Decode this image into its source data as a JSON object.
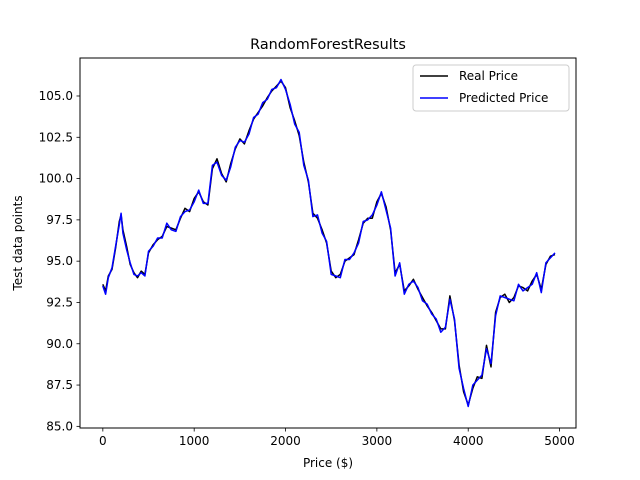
{
  "chart_data": {
    "type": "line",
    "title": "RandomForestResults",
    "xlabel": "Price ($)",
    "ylabel": "Test data points",
    "xlim": [
      -250,
      5180
    ],
    "ylim": [
      84.9,
      107.3
    ],
    "xticks": [
      0,
      1000,
      2000,
      3000,
      4000,
      5000
    ],
    "xtick_labels": [
      "0",
      "1000",
      "2000",
      "3000",
      "4000",
      "5000"
    ],
    "yticks": [
      85.0,
      87.5,
      90.0,
      92.5,
      95.0,
      97.5,
      100.0,
      102.5,
      105.0
    ],
    "ytick_labels": [
      "85.0",
      "87.5",
      "90.0",
      "92.5",
      "95.0",
      "97.5",
      "100.0",
      "102.5",
      "105.0"
    ],
    "grid": false,
    "legend_position": "top-right",
    "series": [
      {
        "name": "Real Price",
        "color": "#000000",
        "x": [
          0,
          30,
          60,
          100,
          140,
          180,
          200,
          220,
          260,
          300,
          340,
          380,
          420,
          460,
          500,
          550,
          600,
          650,
          700,
          750,
          800,
          850,
          900,
          950,
          1000,
          1050,
          1100,
          1150,
          1200,
          1250,
          1300,
          1350,
          1400,
          1450,
          1500,
          1550,
          1600,
          1650,
          1700,
          1750,
          1800,
          1850,
          1900,
          1950,
          2000,
          2050,
          2100,
          2150,
          2200,
          2250,
          2300,
          2350,
          2400,
          2450,
          2500,
          2550,
          2600,
          2650,
          2700,
          2750,
          2800,
          2850,
          2900,
          2950,
          3000,
          3050,
          3100,
          3150,
          3200,
          3250,
          3300,
          3350,
          3400,
          3450,
          3500,
          3550,
          3600,
          3650,
          3700,
          3750,
          3800,
          3850,
          3900,
          3950,
          4000,
          4050,
          4100,
          4150,
          4200,
          4250,
          4300,
          4350,
          4400,
          4450,
          4500,
          4550,
          4600,
          4650,
          4700,
          4750,
          4800,
          4850,
          4900,
          4950
        ],
        "y": [
          93.6,
          93.2,
          94.1,
          94.5,
          95.8,
          97.4,
          97.8,
          96.9,
          95.9,
          94.8,
          94.3,
          94.0,
          94.4,
          94.2,
          95.5,
          96.0,
          96.3,
          96.5,
          97.1,
          97.0,
          96.9,
          97.6,
          98.2,
          98.0,
          98.8,
          99.2,
          98.6,
          98.4,
          100.6,
          101.2,
          100.3,
          99.8,
          100.9,
          101.8,
          102.4,
          102.1,
          102.9,
          103.6,
          104.0,
          104.4,
          104.9,
          105.3,
          105.6,
          105.9,
          105.5,
          104.3,
          103.5,
          102.6,
          101.0,
          99.8,
          97.9,
          97.6,
          96.9,
          96.1,
          94.4,
          94.0,
          94.2,
          95.0,
          95.2,
          95.4,
          96.3,
          97.3,
          97.6,
          97.6,
          98.6,
          99.1,
          98.3,
          96.9,
          94.3,
          94.8,
          93.2,
          93.5,
          93.9,
          93.3,
          92.8,
          92.3,
          91.9,
          91.4,
          90.9,
          90.9,
          92.9,
          91.4,
          88.7,
          87.1,
          86.3,
          87.3,
          88.0,
          87.9,
          89.9,
          88.6,
          91.9,
          92.8,
          93.0,
          92.5,
          92.8,
          93.5,
          93.4,
          93.2,
          93.8,
          94.2,
          93.3,
          94.8,
          95.3,
          95.4
        ]
      },
      {
        "name": "Predicted Price",
        "color": "#0000ff",
        "x": [
          0,
          30,
          60,
          100,
          140,
          180,
          200,
          220,
          260,
          300,
          340,
          380,
          420,
          460,
          500,
          550,
          600,
          650,
          700,
          750,
          800,
          850,
          900,
          950,
          1000,
          1050,
          1100,
          1150,
          1200,
          1250,
          1300,
          1350,
          1400,
          1450,
          1500,
          1550,
          1600,
          1650,
          1700,
          1750,
          1800,
          1850,
          1900,
          1950,
          2000,
          2050,
          2100,
          2150,
          2200,
          2250,
          2300,
          2350,
          2400,
          2450,
          2500,
          2550,
          2600,
          2650,
          2700,
          2750,
          2800,
          2850,
          2900,
          2950,
          3000,
          3050,
          3100,
          3150,
          3200,
          3250,
          3300,
          3350,
          3400,
          3450,
          3500,
          3550,
          3600,
          3650,
          3700,
          3750,
          3800,
          3850,
          3900,
          3950,
          4000,
          4050,
          4100,
          4150,
          4200,
          4250,
          4300,
          4350,
          4400,
          4450,
          4500,
          4550,
          4600,
          4650,
          4700,
          4750,
          4800,
          4850,
          4900,
          4950
        ],
        "y": [
          93.5,
          93.0,
          94.0,
          94.6,
          95.9,
          97.2,
          97.9,
          96.7,
          95.7,
          94.9,
          94.2,
          94.1,
          94.3,
          94.1,
          95.6,
          95.9,
          96.4,
          96.4,
          97.3,
          96.9,
          96.8,
          97.7,
          98.0,
          98.1,
          98.6,
          99.3,
          98.5,
          98.5,
          100.8,
          101.0,
          100.2,
          99.9,
          100.7,
          101.9,
          102.3,
          102.2,
          102.7,
          103.7,
          103.9,
          104.6,
          104.8,
          105.4,
          105.5,
          106.0,
          105.4,
          104.5,
          103.3,
          102.8,
          100.8,
          99.9,
          97.7,
          97.8,
          96.7,
          96.2,
          94.2,
          94.1,
          94.0,
          95.1,
          95.1,
          95.5,
          96.1,
          97.4,
          97.5,
          97.8,
          98.4,
          99.2,
          98.1,
          97.0,
          94.1,
          94.9,
          93.0,
          93.6,
          93.8,
          93.4,
          92.6,
          92.4,
          91.8,
          91.5,
          90.7,
          91.0,
          92.7,
          91.5,
          88.5,
          87.3,
          86.2,
          87.5,
          87.8,
          88.1,
          89.7,
          88.8,
          91.7,
          92.9,
          92.8,
          92.7,
          92.6,
          93.6,
          93.2,
          93.4,
          93.6,
          94.3,
          93.1,
          94.9,
          95.2,
          95.5
        ]
      }
    ]
  }
}
